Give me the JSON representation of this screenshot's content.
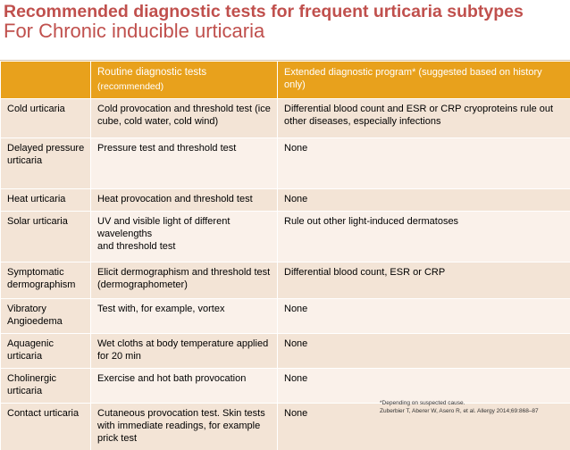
{
  "title": "Recommended diagnostic tests for frequent urticaria subtypes",
  "subtitle": "For Chronic inducible urticaria",
  "table": {
    "headers": {
      "subtype": "",
      "routine": "Routine diagnostic tests",
      "routine_sub": "(recommended)",
      "extended": "Extended diagnostic program* (suggested based on history only)"
    },
    "rows": [
      {
        "subtype": "Cold urticaria",
        "routine": "Cold provocation and threshold test (ice cube, cold water, cold wind)",
        "extended": "Differential blood count and ESR or CRP cryoproteins rule out other diseases, especially infections"
      },
      {
        "subtype": "Delayed pressure urticaria",
        "routine": "Pressure test and threshold test",
        "extended": "None"
      },
      {
        "subtype": "Heat urticaria",
        "routine": "Heat provocation and threshold test",
        "extended": "None"
      },
      {
        "subtype": "Solar urticaria",
        "routine": "UV and visible light of different wavelengths\nand threshold test",
        "extended": "Rule out other light-induced dermatoses"
      },
      {
        "subtype": "Symptomatic dermographism",
        "routine": "Elicit dermographism and threshold test (dermographometer)",
        "extended": "Differential blood count, ESR or CRP"
      },
      {
        "subtype": "Vibratory Angioedema",
        "routine": "Test with, for example, vortex",
        "extended": "None"
      },
      {
        "subtype": "Aquagenic urticaria",
        "routine": "Wet cloths at body temperature applied for 20 min",
        "extended": "None"
      },
      {
        "subtype": "Cholinergic urticaria",
        "routine": "Exercise and hot bath provocation",
        "extended": "None"
      },
      {
        "subtype": "Contact urticaria",
        "routine": "Cutaneous provocation test. Skin tests with immediate readings, for example prick test",
        "extended": "None"
      }
    ]
  },
  "footnote": {
    "line1": "*Depending on suspected cause.",
    "line2": "Zuberbier T, Aberer W, Asero R, et al. Allergy 2014;69:868–87"
  }
}
